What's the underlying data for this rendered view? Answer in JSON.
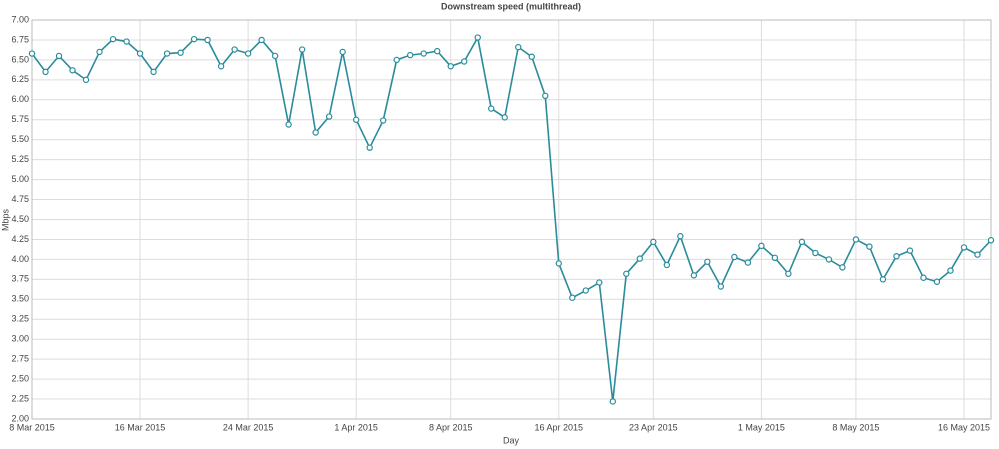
{
  "chart_data": {
    "type": "line",
    "title": "Downstream speed (multithread)",
    "x_label": "Day",
    "y_label": "Mbps",
    "x": [
      "2015-03-08",
      "2015-03-09",
      "2015-03-10",
      "2015-03-11",
      "2015-03-12",
      "2015-03-13",
      "2015-03-14",
      "2015-03-15",
      "2015-03-16",
      "2015-03-17",
      "2015-03-18",
      "2015-03-19",
      "2015-03-20",
      "2015-03-21",
      "2015-03-22",
      "2015-03-23",
      "2015-03-24",
      "2015-03-25",
      "2015-03-26",
      "2015-03-27",
      "2015-03-28",
      "2015-03-29",
      "2015-03-30",
      "2015-03-31",
      "2015-04-01",
      "2015-04-02",
      "2015-04-03",
      "2015-04-04",
      "2015-04-05",
      "2015-04-06",
      "2015-04-07",
      "2015-04-08",
      "2015-04-09",
      "2015-04-10",
      "2015-04-11",
      "2015-04-12",
      "2015-04-13",
      "2015-04-14",
      "2015-04-15",
      "2015-04-16",
      "2015-04-17",
      "2015-04-18",
      "2015-04-19",
      "2015-04-20",
      "2015-04-21",
      "2015-04-22",
      "2015-04-23",
      "2015-04-24",
      "2015-04-25",
      "2015-04-26",
      "2015-04-27",
      "2015-04-28",
      "2015-04-29",
      "2015-04-30",
      "2015-05-01",
      "2015-05-02",
      "2015-05-03",
      "2015-05-04",
      "2015-05-05",
      "2015-05-06",
      "2015-05-07",
      "2015-05-08",
      "2015-05-09",
      "2015-05-10",
      "2015-05-11",
      "2015-05-12",
      "2015-05-13",
      "2015-05-14",
      "2015-05-15",
      "2015-05-16",
      "2015-05-17",
      "2015-05-18"
    ],
    "values": [
      6.58,
      6.35,
      6.55,
      6.37,
      6.25,
      6.6,
      6.76,
      6.73,
      6.58,
      6.35,
      6.58,
      6.59,
      6.76,
      6.75,
      6.42,
      6.63,
      6.58,
      6.75,
      6.55,
      5.69,
      6.63,
      5.59,
      5.79,
      6.6,
      5.75,
      5.4,
      5.74,
      6.5,
      6.56,
      6.58,
      6.61,
      6.42,
      6.48,
      6.78,
      5.89,
      5.78,
      6.66,
      6.54,
      6.05,
      3.95,
      3.52,
      3.61,
      3.71,
      2.22,
      3.82,
      4.01,
      4.22,
      3.93,
      4.29,
      3.8,
      3.97,
      3.66,
      4.03,
      3.96,
      4.17,
      4.02,
      3.82,
      4.22,
      4.08,
      4.0,
      3.9,
      4.25,
      4.16,
      3.75,
      4.04,
      4.11,
      3.77,
      3.72,
      3.86,
      4.15,
      4.06,
      4.24
    ],
    "color": "#2a8c9b",
    "xlim": [
      "2015-03-08",
      "2015-05-18"
    ],
    "xticks": [
      {
        "value": "2015-03-08",
        "label": "8 Mar 2015"
      },
      {
        "value": "2015-03-16",
        "label": "16 Mar 2015"
      },
      {
        "value": "2015-03-24",
        "label": "24 Mar 2015"
      },
      {
        "value": "2015-04-01",
        "label": "1 Apr 2015"
      },
      {
        "value": "2015-04-08",
        "label": "8 Apr 2015"
      },
      {
        "value": "2015-04-16",
        "label": "16 Apr 2015"
      },
      {
        "value": "2015-04-23",
        "label": "23 Apr 2015"
      },
      {
        "value": "2015-05-01",
        "label": "1 May 2015"
      },
      {
        "value": "2015-05-08",
        "label": "8 May 2015"
      },
      {
        "value": "2015-05-16",
        "label": "16 May 2015"
      }
    ],
    "ylim": [
      2,
      7
    ],
    "yticks": [
      {
        "value": 2,
        "label": "2.00"
      },
      {
        "value": 2.25,
        "label": "2.25"
      },
      {
        "value": 2.5,
        "label": "2.50"
      },
      {
        "value": 2.75,
        "label": "2.75"
      },
      {
        "value": 3,
        "label": "3.00"
      },
      {
        "value": 3.25,
        "label": "3.25"
      },
      {
        "value": 3.5,
        "label": "3.50"
      },
      {
        "value": 3.75,
        "label": "3.75"
      },
      {
        "value": 4,
        "label": "4.00"
      },
      {
        "value": 4.25,
        "label": "4.25"
      },
      {
        "value": 4.5,
        "label": "4.50"
      },
      {
        "value": 4.75,
        "label": "4.75"
      },
      {
        "value": 5,
        "label": "5.00"
      },
      {
        "value": 5.25,
        "label": "5.25"
      },
      {
        "value": 5.5,
        "label": "5.50"
      },
      {
        "value": 5.75,
        "label": "5.75"
      },
      {
        "value": 6,
        "label": "6.00"
      },
      {
        "value": 6.25,
        "label": "6.25"
      },
      {
        "value": 6.5,
        "label": "6.50"
      },
      {
        "value": 6.75,
        "label": "6.75"
      },
      {
        "value": 7,
        "label": "7.00"
      }
    ],
    "grid": true
  }
}
